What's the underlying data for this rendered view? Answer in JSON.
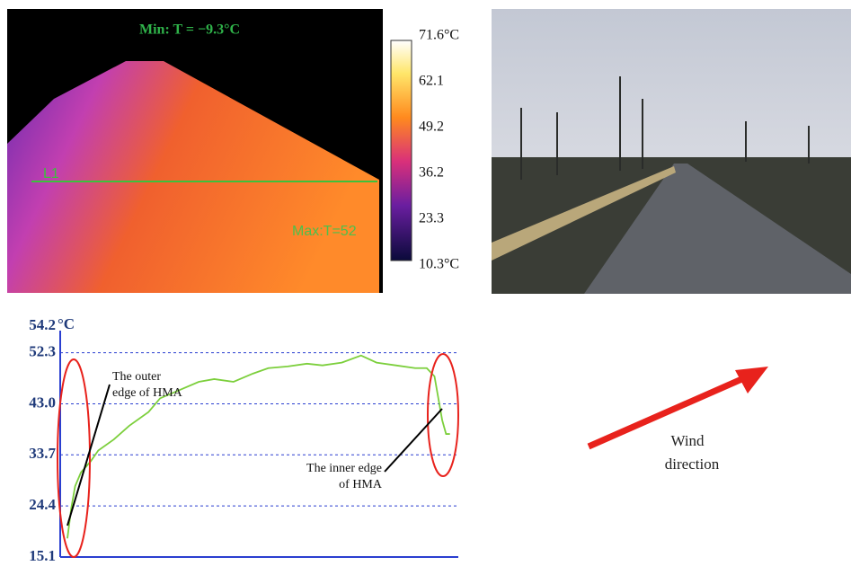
{
  "thermal_image": {
    "min_label": "Min: T = −9.3°C",
    "line_label": "L1",
    "max_label": "Max:T=52",
    "scale_labels": [
      "71.6°C",
      "62.1",
      "49.2",
      "36.2",
      "23.3",
      "10.3°C"
    ]
  },
  "chart_data": {
    "type": "line",
    "color": "#7ccf3c",
    "x": [
      0,
      1,
      2,
      3.5,
      6,
      8,
      12,
      16,
      21,
      24,
      29,
      34,
      38,
      43,
      48,
      52,
      57,
      62,
      66,
      71,
      76,
      80,
      85,
      90,
      93,
      95,
      96,
      97,
      98,
      99
    ],
    "values": [
      18.5,
      24,
      28,
      30.5,
      32.5,
      34.5,
      36.5,
      39,
      41.5,
      44,
      45.5,
      47,
      47.5,
      47,
      48.5,
      49.5,
      49.8,
      50.3,
      50,
      50.5,
      51.8,
      50.5,
      50,
      49.5,
      49.5,
      48,
      44,
      40,
      37.5,
      37.5
    ],
    "xlim": [
      0,
      100
    ],
    "ylim": [
      15.1,
      54.2
    ],
    "y_unit": "°C",
    "yticks": [
      15.1,
      24.4,
      33.7,
      {
        "value": 43,
        "label": "43.0"
      },
      52.3
    ],
    "grid": true,
    "annotations": [
      {
        "lines": [
          "The outer",
          "edge of HMA"
        ]
      },
      {
        "lines": [
          "The inner edge",
          "of HMA"
        ]
      }
    ]
  },
  "wind": {
    "label": [
      "Wind",
      "direction"
    ]
  }
}
